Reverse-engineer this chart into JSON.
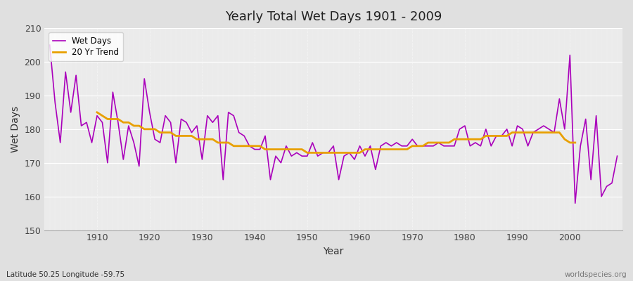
{
  "title": "Yearly Total Wet Days 1901 - 2009",
  "xlabel": "Year",
  "ylabel": "Wet Days",
  "subtitle": "Latitude 50.25 Longitude -59.75",
  "watermark": "worldspecies.org",
  "xlim": [
    1900,
    2010
  ],
  "ylim": [
    150,
    210
  ],
  "yticks": [
    150,
    160,
    170,
    180,
    190,
    200,
    210
  ],
  "xticks": [
    1910,
    1920,
    1930,
    1940,
    1950,
    1960,
    1970,
    1980,
    1990,
    2000
  ],
  "wet_days_color": "#aa00bb",
  "trend_color": "#e8a000",
  "bg_color": "#e0e0e0",
  "plot_bg_color": "#ebebeb",
  "years": [
    1901,
    1902,
    1903,
    1904,
    1905,
    1906,
    1907,
    1908,
    1909,
    1910,
    1911,
    1912,
    1913,
    1914,
    1915,
    1916,
    1917,
    1918,
    1919,
    1920,
    1921,
    1922,
    1923,
    1924,
    1925,
    1926,
    1927,
    1928,
    1929,
    1930,
    1931,
    1932,
    1933,
    1934,
    1935,
    1936,
    1937,
    1938,
    1939,
    1940,
    1941,
    1942,
    1943,
    1944,
    1945,
    1946,
    1947,
    1948,
    1949,
    1950,
    1951,
    1952,
    1953,
    1954,
    1955,
    1956,
    1957,
    1958,
    1959,
    1960,
    1961,
    1962,
    1963,
    1964,
    1965,
    1966,
    1967,
    1968,
    1969,
    1970,
    1971,
    1972,
    1973,
    1974,
    1975,
    1976,
    1977,
    1978,
    1979,
    1980,
    1981,
    1982,
    1983,
    1984,
    1985,
    1986,
    1987,
    1988,
    1989,
    1990,
    1991,
    1992,
    1993,
    1994,
    1995,
    1996,
    1997,
    1998,
    1999,
    2000,
    2001,
    2002,
    2003,
    2004,
    2005,
    2006,
    2007,
    2008,
    2009
  ],
  "wet_days": [
    205,
    188,
    176,
    197,
    185,
    196,
    181,
    182,
    176,
    184,
    182,
    170,
    191,
    182,
    171,
    181,
    176,
    169,
    195,
    185,
    177,
    176,
    184,
    182,
    170,
    183,
    182,
    179,
    181,
    171,
    184,
    182,
    184,
    165,
    185,
    184,
    179,
    178,
    175,
    174,
    174,
    178,
    165,
    172,
    170,
    175,
    172,
    173,
    172,
    172,
    176,
    172,
    173,
    173,
    175,
    165,
    172,
    173,
    171,
    175,
    172,
    175,
    168,
    175,
    176,
    175,
    176,
    175,
    175,
    177,
    175,
    175,
    175,
    175,
    176,
    175,
    175,
    175,
    180,
    181,
    175,
    176,
    175,
    180,
    175,
    178,
    178,
    180,
    175,
    181,
    180,
    175,
    179,
    180,
    181,
    180,
    179,
    189,
    180,
    202,
    158,
    175,
    183,
    165,
    184,
    160,
    163,
    164,
    172
  ],
  "trend": [
    null,
    null,
    null,
    null,
    null,
    null,
    null,
    null,
    null,
    185,
    184,
    183,
    183,
    183,
    182,
    182,
    181,
    181,
    180,
    180,
    180,
    179,
    179,
    179,
    178,
    178,
    178,
    178,
    177,
    177,
    177,
    177,
    176,
    176,
    176,
    175,
    175,
    175,
    175,
    175,
    175,
    174,
    174,
    174,
    174,
    174,
    174,
    174,
    174,
    173,
    173,
    173,
    173,
    173,
    173,
    173,
    173,
    173,
    173,
    173,
    174,
    174,
    174,
    174,
    174,
    174,
    174,
    174,
    174,
    175,
    175,
    175,
    176,
    176,
    176,
    176,
    176,
    177,
    177,
    177,
    177,
    177,
    177,
    178,
    178,
    178,
    178,
    178,
    179,
    179,
    179,
    179,
    179,
    179,
    179,
    179,
    179,
    179,
    177,
    176,
    176,
    null,
    null,
    null,
    null,
    null,
    null,
    null,
    null
  ]
}
